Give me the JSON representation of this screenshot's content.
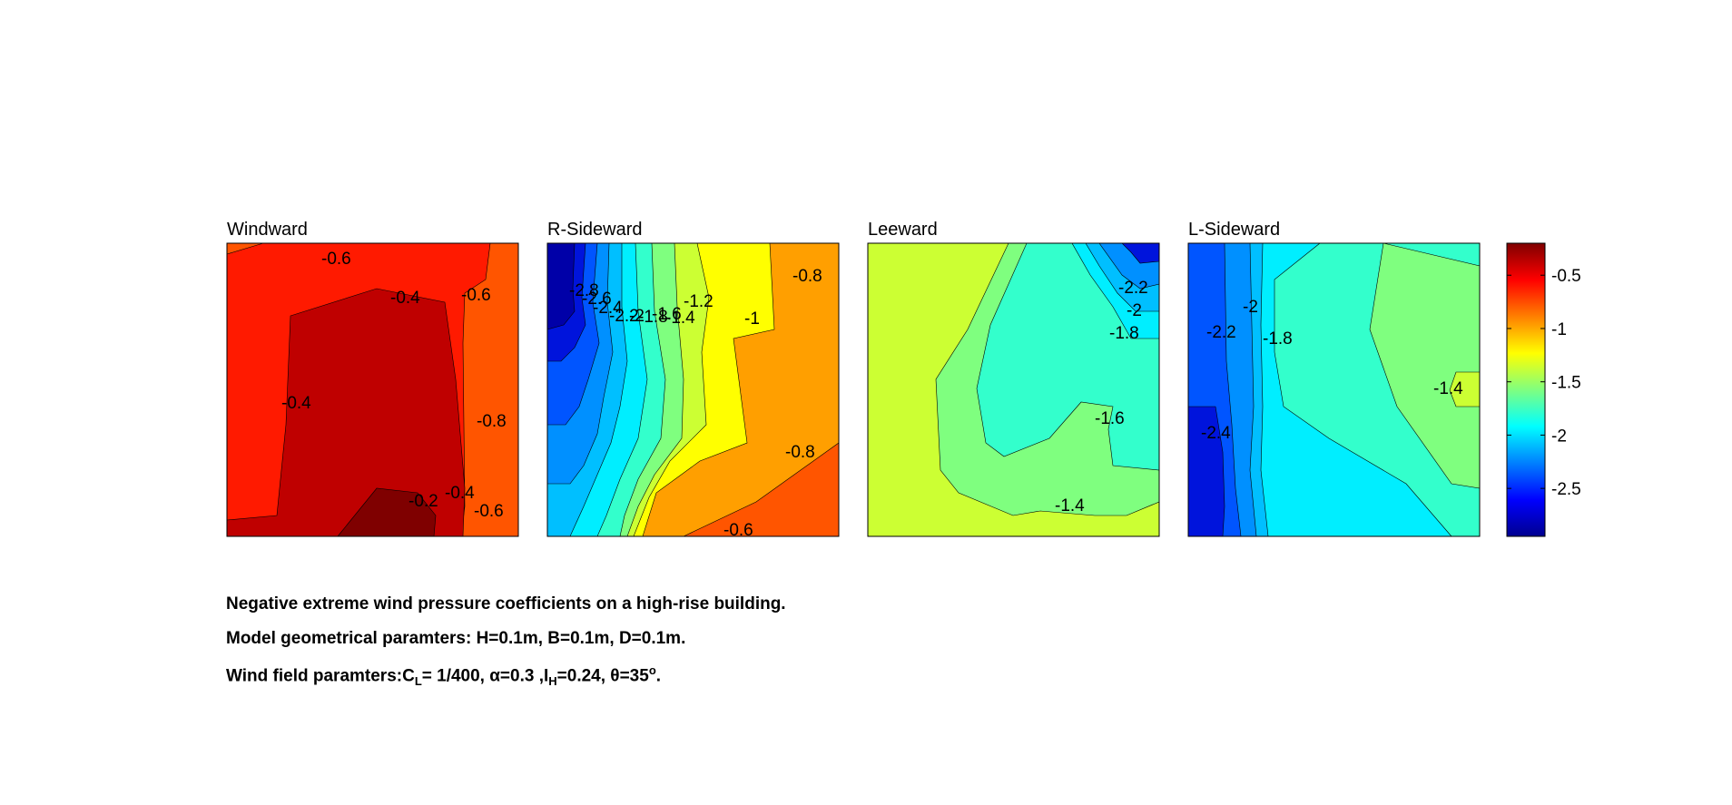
{
  "chart_data": {
    "type": "heatmap",
    "subtype": "filled-contour",
    "colormap": "jet",
    "panels": [
      {
        "title": "Windward",
        "contour_labels": [
          "-0.6",
          "-0.4",
          "-0.6",
          "-0.4",
          "-0.8",
          "-0.2",
          "-0.4",
          "-0.6"
        ]
      },
      {
        "title": "R-Sideward",
        "contour_labels": [
          "-2.8",
          "-2.6",
          "-2.4",
          "-2.2",
          "-2",
          "-1.8",
          "-1.6",
          "-1.4",
          "-1.2",
          "-1",
          "-0.8",
          "-0.8",
          "-0.6"
        ]
      },
      {
        "title": "Leeward",
        "contour_labels": [
          "-2.2",
          "-2",
          "-1.8",
          "-1.6",
          "-1.4"
        ]
      },
      {
        "title": "L-Sideward",
        "contour_labels": [
          "-2.2",
          "-2",
          "-1.8",
          "-2.4",
          "-1.4"
        ]
      }
    ],
    "colorbar": {
      "range": [
        -2.95,
        -0.2
      ],
      "ticks": [
        -0.5,
        -1,
        -1.5,
        -2,
        -2.5
      ],
      "tick_labels": [
        "-0.5",
        "-1",
        "-1.5",
        "-2",
        "-2.5"
      ]
    },
    "colors": {
      "dark_red": "#7f0000",
      "red_dark": "#bf0000",
      "red": "#ff1a00",
      "orange_red": "#ff5500",
      "orange": "#ff9f00",
      "yellow": "#ffff00",
      "yellow_green": "#ccff33",
      "green": "#7fff7f",
      "cyan_green": "#33ffcc",
      "cyan": "#00eeff",
      "light_blue": "#00bfff",
      "blue_mid": "#0090ff",
      "blue": "#0055ff",
      "deep_blue": "#0014dc",
      "navy": "#0000a8"
    }
  },
  "caption": {
    "line1": "Negative extreme wind pressure coefficients on a high-rise building.",
    "line2": "Model geometrical paramters: H=0.1m, B=0.1m, D=0.1m.",
    "line3_prefix": "Wind field paramters:C",
    "line3_sub1": "L",
    "line3_mid1": "= 1/400, α=0.3 ,I",
    "line3_sub2": "H",
    "line3_mid2": "=0.24, θ=35",
    "line3_sup": "o",
    "line3_end": "."
  }
}
